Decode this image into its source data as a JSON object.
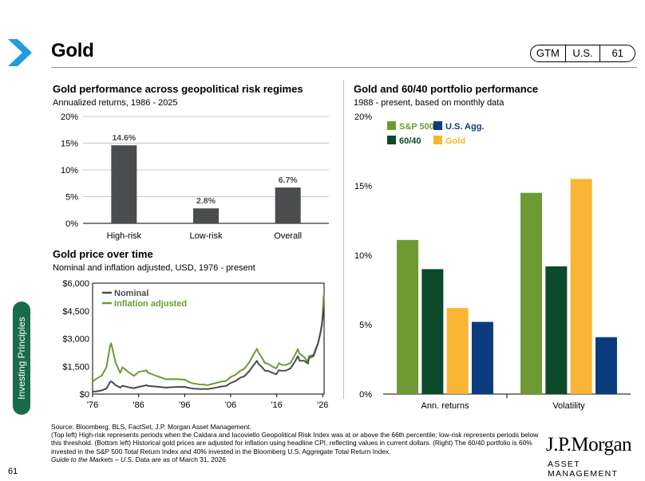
{
  "header": {
    "title": "Gold",
    "badge": [
      "GTM",
      "U.S.",
      "61"
    ],
    "brand_color": "#1f9be0"
  },
  "side_tab": {
    "label": "Investing Principles",
    "color": "#1a6b4a"
  },
  "page_number": "61",
  "panels": {
    "risk": {
      "title": "Gold performance across geopolitical risk regimes",
      "subtitle": "Annualized returns, 1986 - 2025"
    },
    "price": {
      "title": "Gold price over time",
      "subtitle": "Nominal and inflation adjusted, USD, 1976 - present"
    },
    "portfolio": {
      "title": "Gold and 60/40 portfolio performance",
      "subtitle": "1988 - present, based on monthly data"
    }
  },
  "footnotes": {
    "source": "Source: Bloomberg, BLS, FactSet, J.P. Morgan Asset Management.",
    "notes": "(Top left) High-risk represents periods when the Caldara and Iacoviello Geopolitical Risk Index was at or above the 66th percentile; low-risk represents periods below this threshold. (Bottom left) Historical gold prices are adjusted for inflation using headline CPI, reflecting values in current dollars. (Right) The 60/40 portfolio is 60% invested in the S&P 500 Total Return Index and 40% invested in the Bloomberg U.S. Aggregate Total Return Index.",
    "gtm": "Guide to the Markets – U.S.",
    "asof": " Data are as of March 31, 2026"
  },
  "brand": {
    "name": "J.P.Morgan",
    "sub": "ASSET MANAGEMENT"
  },
  "chart_data": [
    {
      "id": "risk",
      "type": "bar",
      "categories": [
        "High-risk",
        "Low-risk",
        "Overall"
      ],
      "values": [
        14.6,
        2.8,
        6.7
      ],
      "value_labels": [
        "14.6%",
        "2.8%",
        "6.7%"
      ],
      "ylim": [
        0,
        20
      ],
      "yticks": [
        0,
        5,
        10,
        15,
        20
      ],
      "ytick_labels": [
        "0%",
        "5%",
        "10%",
        "15%",
        "20%"
      ],
      "color": "#4a4c4e",
      "grid": true
    },
    {
      "id": "price",
      "type": "line",
      "xlim": [
        1976,
        2026.3
      ],
      "ylim": [
        0,
        6000
      ],
      "xticks": [
        1976,
        1986,
        1996,
        2006,
        2016,
        2026
      ],
      "xtick_labels": [
        "'76",
        "'86",
        "'96",
        "'06",
        "'16",
        "'26"
      ],
      "yticks": [
        0,
        1500,
        3000,
        4500,
        6000
      ],
      "ytick_labels": [
        "$0",
        "$1,500",
        "$3,000",
        "$4,500",
        "$6,000"
      ],
      "legend_position": "top-left",
      "series": [
        {
          "name": "Nominal",
          "color": "#4a4c4e",
          "x": [
            1976,
            1977,
            1978,
            1979,
            1979.8,
            1980.05,
            1980.5,
            1981,
            1982,
            1982.5,
            1983,
            1984,
            1985,
            1986,
            1987.8,
            1988,
            1990,
            1992,
            1994,
            1996,
            1997,
            1998,
            1999.5,
            2000,
            2001,
            2002,
            2003,
            2004,
            2005,
            2006,
            2007,
            2008,
            2009,
            2010,
            2011,
            2011.7,
            2012,
            2013,
            2013.5,
            2014,
            2015,
            2015.9,
            2016.5,
            2017,
            2018,
            2019,
            2020,
            2020.6,
            2021,
            2022,
            2022.8,
            2023,
            2024,
            2024.5,
            2025,
            2025.5,
            2025.8,
            2026,
            2026.2
          ],
          "y": [
            125,
            150,
            200,
            300,
            650,
            680,
            600,
            480,
            350,
            450,
            420,
            360,
            320,
            390,
            480,
            440,
            400,
            350,
            385,
            390,
            330,
            295,
            270,
            280,
            270,
            310,
            360,
            410,
            440,
            600,
            700,
            870,
            970,
            1230,
            1570,
            1800,
            1650,
            1400,
            1250,
            1260,
            1160,
            1060,
            1300,
            1260,
            1270,
            1390,
            1770,
            2050,
            1800,
            1800,
            1650,
            1950,
            2050,
            2400,
            2750,
            3300,
            3700,
            4200,
            4700
          ]
        },
        {
          "name": "Inflation adjusted",
          "color": "#6e9a35",
          "x": [
            1976,
            1977,
            1978,
            1979,
            1979.8,
            1980.05,
            1980.5,
            1981,
            1982,
            1982.5,
            1983,
            1984,
            1985,
            1986,
            1987.8,
            1988,
            1990,
            1992,
            1994,
            1996,
            1997,
            1998,
            1999.5,
            2000,
            2001,
            2002,
            2003,
            2004,
            2005,
            2006,
            2007,
            2008,
            2009,
            2010,
            2011,
            2011.7,
            2012,
            2013,
            2013.5,
            2014,
            2015,
            2015.9,
            2016.5,
            2017,
            2018,
            2019,
            2020,
            2020.6,
            2021,
            2022,
            2022.8,
            2023,
            2024,
            2024.5,
            2025,
            2025.5,
            2025.8,
            2026,
            2026.2
          ],
          "y": [
            700,
            850,
            1000,
            1450,
            2600,
            2750,
            2250,
            1700,
            1150,
            1450,
            1350,
            1150,
            980,
            1200,
            1280,
            1160,
            970,
            800,
            810,
            780,
            640,
            570,
            510,
            520,
            480,
            550,
            610,
            680,
            700,
            930,
            1030,
            1240,
            1380,
            1700,
            2150,
            2450,
            2270,
            1880,
            1660,
            1650,
            1500,
            1380,
            1670,
            1590,
            1570,
            1680,
            2130,
            2430,
            2180,
            2000,
            1730,
            2050,
            2130,
            2460,
            2780,
            3350,
            3750,
            4250,
            5350
          ]
        }
      ]
    },
    {
      "id": "portfolio",
      "type": "bar",
      "categories": [
        "Ann. returns",
        "Volatility"
      ],
      "ylim": [
        0,
        20
      ],
      "yticks": [
        0,
        5,
        10,
        15,
        20
      ],
      "ytick_labels": [
        "0%",
        "5%",
        "10%",
        "15%",
        "20%"
      ],
      "legend_position": "top-left",
      "series": [
        {
          "name": "S&P 500",
          "color": "#6e9a35",
          "values": [
            11.1,
            14.5
          ]
        },
        {
          "name": "60/40",
          "color": "#0b4a2b",
          "values": [
            9.0,
            9.2
          ]
        },
        {
          "name": "Gold",
          "color": "#f8b634",
          "values": [
            6.2,
            15.5
          ]
        },
        {
          "name": "U.S. Agg.",
          "color": "#0b3d7e",
          "values": [
            5.2,
            4.1
          ]
        }
      ]
    }
  ]
}
